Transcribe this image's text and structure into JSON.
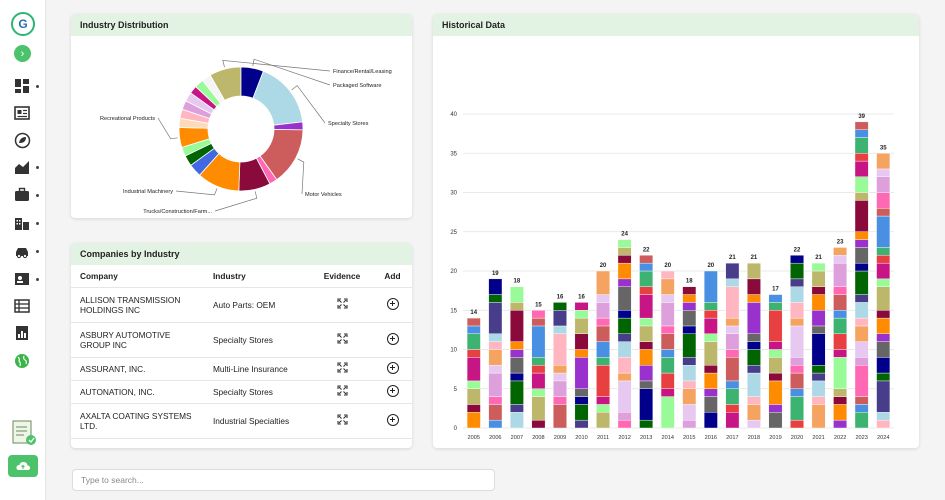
{
  "sidebar": {
    "logo_icon": "company-logo-icon",
    "expand_icon": "chevron-right-icon",
    "items": [
      {
        "icon": "dashboard-icon"
      },
      {
        "icon": "newspaper-icon"
      },
      {
        "icon": "esg-leaf-icon"
      },
      {
        "icon": "area-chart-icon"
      },
      {
        "icon": "briefcase-icon"
      },
      {
        "icon": "buildings-icon"
      },
      {
        "icon": "transport-icon"
      },
      {
        "icon": "contacts-icon"
      },
      {
        "icon": "list-icon"
      },
      {
        "icon": "report-icon"
      },
      {
        "icon": "globe-icon"
      }
    ],
    "upload_icon": "cloud-upload-icon"
  },
  "industry_distribution": {
    "title": "Industry Distribution",
    "labels": [
      "Finance/Rental/Leasing",
      "Packaged Software",
      "Specialty Stores",
      "Motor Vehicles",
      "Trucks/Construction/Farm...",
      "Industrial Machinery",
      "Recreational Products"
    ],
    "slices": [
      {
        "label": "Finance/Rental/Leasing",
        "value": 8.0,
        "color": "#bdb76b"
      },
      {
        "label": "Packaged Software",
        "value": 5.7,
        "color": "#00008b"
      },
      {
        "label": "Specialty Stores",
        "value": 16.7,
        "color": "#add8e6"
      },
      {
        "label": "",
        "value": 2.0,
        "color": "#9932cc"
      },
      {
        "label": "Motor Vehicles",
        "value": 14.5,
        "color": "#cd5c5c"
      },
      {
        "label": "",
        "value": 2.0,
        "color": "#ff69b4"
      },
      {
        "label": "Trucks/Construction/Farm...",
        "value": 8.0,
        "color": "#8b0a3c"
      },
      {
        "label": "Industrial Machinery",
        "value": 10.7,
        "color": "#ff8c00"
      },
      {
        "label": "",
        "value": 3.3,
        "color": "#4169e1"
      },
      {
        "label": "",
        "value": 2.7,
        "color": "#006400"
      },
      {
        "label": "",
        "value": 2.3,
        "color": "#98fb98"
      },
      {
        "label": "Recreational Products",
        "value": 5.0,
        "color": "#ff8c00"
      },
      {
        "label": "",
        "value": 2.3,
        "color": "#ffdab9"
      },
      {
        "label": "",
        "value": 2.3,
        "color": "#ffb6c1"
      },
      {
        "label": "",
        "value": 2.3,
        "color": "#dda0dd"
      },
      {
        "label": "",
        "value": 2.3,
        "color": "#e6c8f0"
      },
      {
        "label": "",
        "value": 2.0,
        "color": "#c71585"
      },
      {
        "label": "",
        "value": 2.3,
        "color": "#98fb98"
      },
      {
        "label": "",
        "value": 2.3,
        "color": "#f5f5f5"
      }
    ]
  },
  "companies": {
    "title": "Companies by Industry",
    "columns": [
      "Company",
      "Industry",
      "Evidence",
      "Add"
    ],
    "rows": [
      {
        "company": "ALLISON TRANSMISSION HOLDINGS INC",
        "industry": "Auto Parts: OEM"
      },
      {
        "company": "ASBURY AUTOMOTIVE GROUP INC",
        "industry": "Specialty Stores"
      },
      {
        "company": "ASSURANT, INC.",
        "industry": "Multi-Line Insurance"
      },
      {
        "company": "AUTONATION, INC.",
        "industry": "Specialty Stores"
      },
      {
        "company": "AXALTA COATING SYSTEMS LTD.",
        "industry": "Industrial Specialties"
      }
    ],
    "evidence_icon": "expand-icon",
    "add_icon": "plus-circle-icon"
  },
  "historical": {
    "title": "Historical Data"
  },
  "search": {
    "placeholder": "Type to search..."
  },
  "chart_data": [
    {
      "type": "pie",
      "title": "Industry Distribution",
      "labels": [
        "Finance/Rental/Leasing",
        "Packaged Software",
        "Specialty Stores",
        "Motor Vehicles",
        "Trucks/Construction/Farm...",
        "Industrial Machinery",
        "Recreational Products"
      ],
      "donut": true
    },
    {
      "type": "bar",
      "stacked": true,
      "title": "Historical Data",
      "categories": [
        "2005",
        "2006",
        "2007",
        "2008",
        "2009",
        "2010",
        "2011",
        "2012",
        "2013",
        "2014",
        "2015",
        "2016",
        "2017",
        "2018",
        "2019",
        "2020",
        "2021",
        "2022",
        "2023",
        "2024"
      ],
      "totals": [
        14,
        19,
        18,
        15,
        16,
        16,
        20,
        24,
        22,
        20,
        18,
        20,
        21,
        21,
        17,
        22,
        21,
        23,
        39,
        35
      ],
      "ylim": [
        0,
        40
      ],
      "yticks": [
        0,
        5,
        10,
        15,
        20,
        25,
        30,
        35,
        40
      ],
      "grid": true,
      "legend": "none"
    }
  ]
}
